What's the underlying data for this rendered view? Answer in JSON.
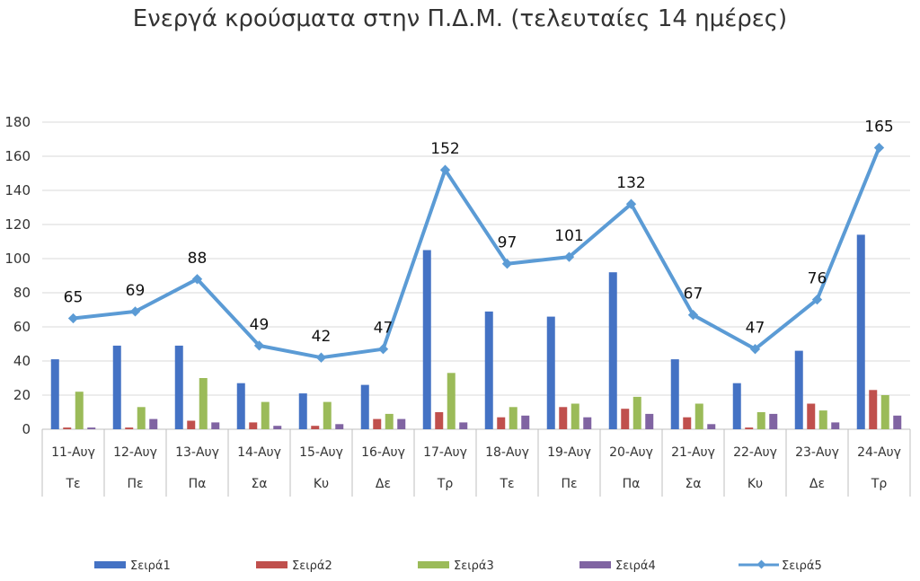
{
  "chart_data": {
    "type": "bar",
    "title": "Ενεργά κρούσματα στην Π.Δ.Μ. (τελευταίες 14 ημέρες)",
    "categories": [
      "11-Αυγ",
      "12-Αυγ",
      "13-Αυγ",
      "14-Αυγ",
      "15-Αυγ",
      "16-Αυγ",
      "17-Αυγ",
      "18-Αυγ",
      "19-Αυγ",
      "20-Αυγ",
      "21-Αυγ",
      "22-Αυγ",
      "23-Αυγ",
      "24-Αυγ"
    ],
    "categories_secondary": [
      "Τε",
      "Πε",
      "Πα",
      "Σα",
      "Κυ",
      "Δε",
      "Τρ",
      "Τε",
      "Πε",
      "Πα",
      "Σα",
      "Κυ",
      "Δε",
      "Τρ"
    ],
    "series": [
      {
        "name": "Σειρά1",
        "type": "bar",
        "color": "#4472C4",
        "values": [
          41,
          49,
          49,
          27,
          21,
          26,
          105,
          69,
          66,
          92,
          41,
          27,
          46,
          114
        ]
      },
      {
        "name": "Σειρά2",
        "type": "bar",
        "color": "#C0504D",
        "values": [
          1,
          1,
          5,
          4,
          2,
          6,
          10,
          7,
          13,
          12,
          7,
          1,
          15,
          23
        ]
      },
      {
        "name": "Σειρά3",
        "type": "bar",
        "color": "#9BBB59",
        "values": [
          22,
          13,
          30,
          16,
          16,
          9,
          33,
          13,
          15,
          19,
          15,
          10,
          11,
          20
        ]
      },
      {
        "name": "Σειρά4",
        "type": "bar",
        "color": "#8064A2",
        "values": [
          1,
          6,
          4,
          2,
          3,
          6,
          4,
          8,
          7,
          9,
          3,
          9,
          4,
          8
        ]
      },
      {
        "name": "Σειρά5",
        "type": "line",
        "color": "#5B9BD5",
        "values": [
          65,
          69,
          88,
          49,
          42,
          47,
          152,
          97,
          101,
          132,
          67,
          47,
          76,
          165
        ],
        "data_labels": true
      }
    ],
    "ylim": [
      0,
      180
    ],
    "yticks": [
      0,
      20,
      40,
      60,
      80,
      100,
      120,
      140,
      160,
      180
    ],
    "grid": true,
    "legend_position": "bottom"
  }
}
